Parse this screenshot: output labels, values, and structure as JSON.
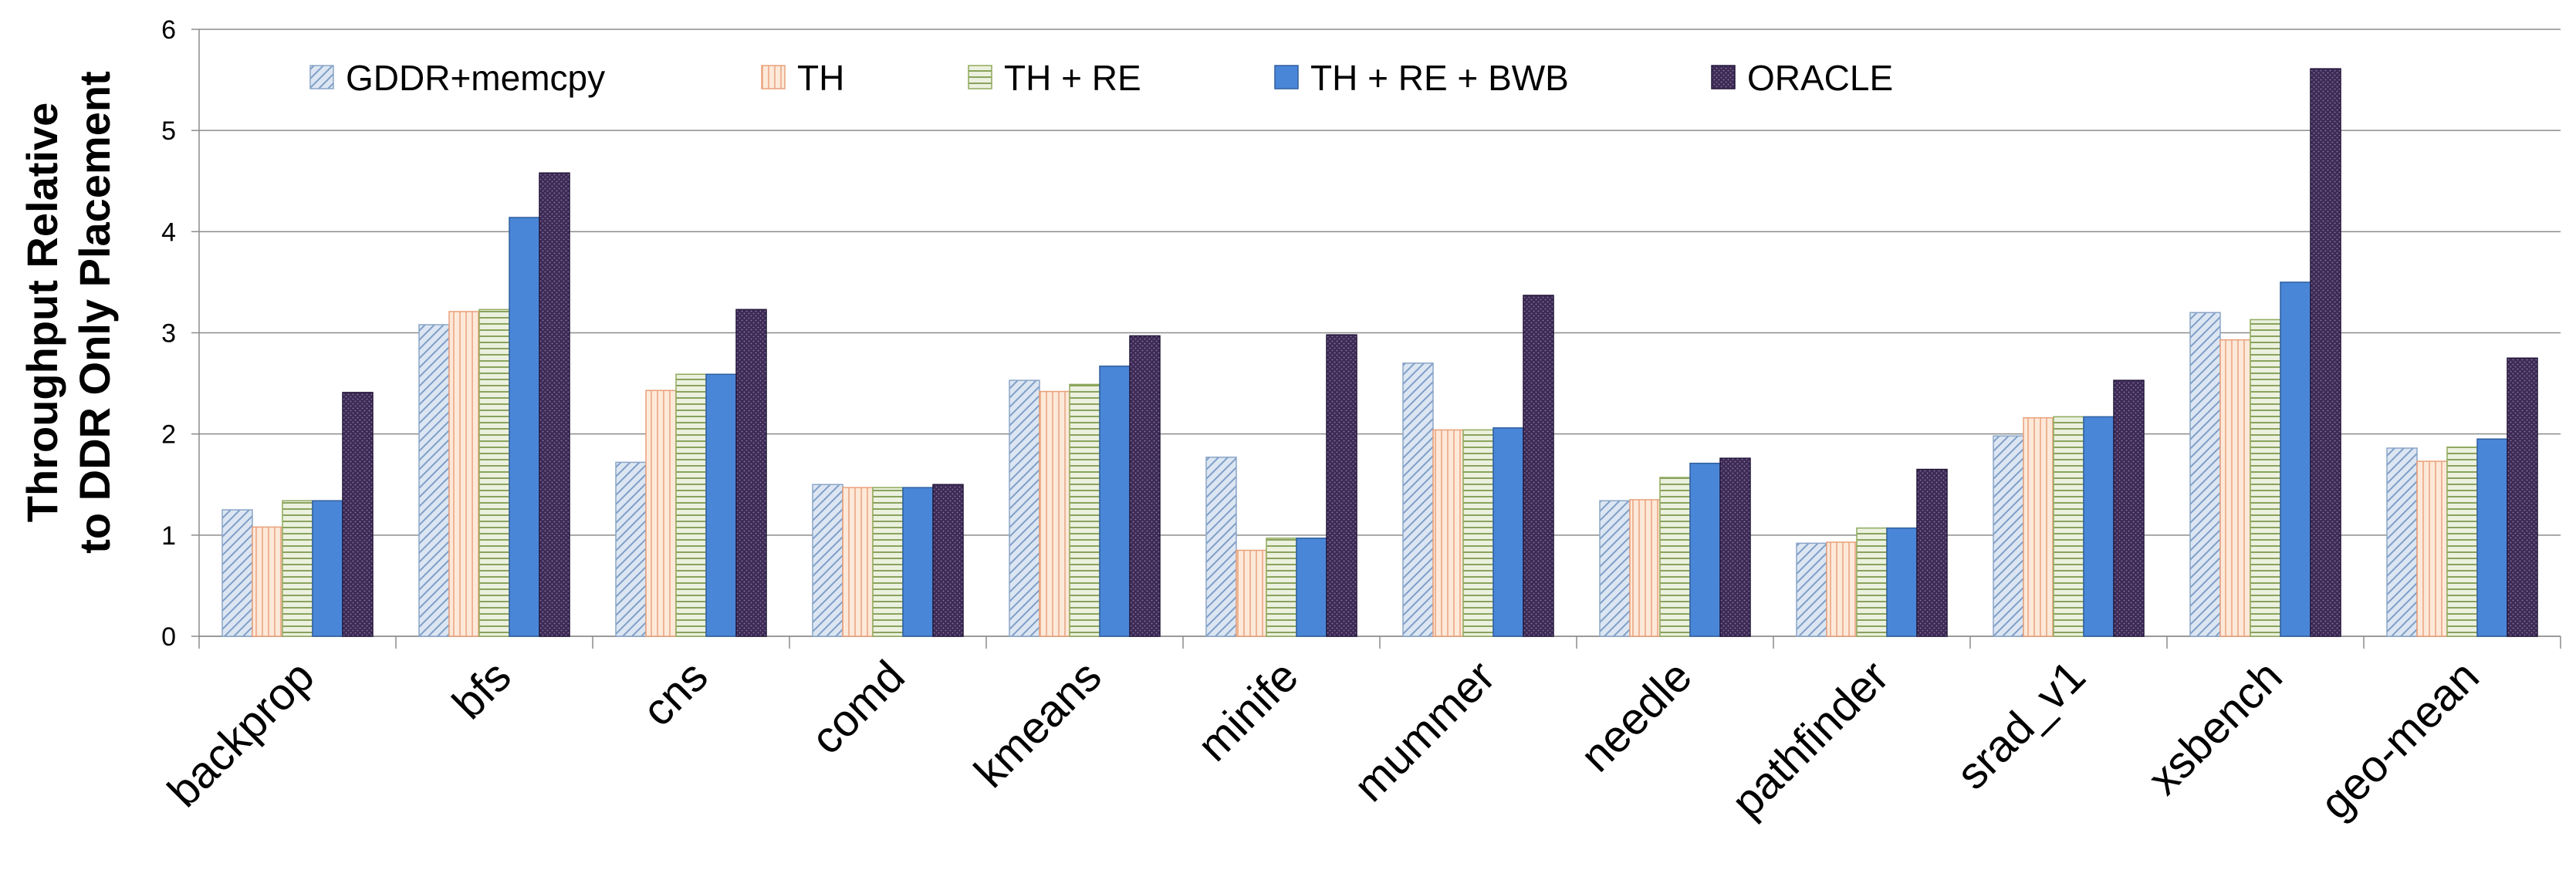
{
  "chart_data": {
    "type": "bar",
    "title": "",
    "xlabel": "",
    "ylabel_lines": [
      "Throughput Relative",
      "to DDR Only Placement"
    ],
    "ylim": [
      0,
      6
    ],
    "yticks": [
      "0",
      "1",
      "2",
      "3",
      "4",
      "5",
      "6"
    ],
    "grid": true,
    "legend_position": "top",
    "categories": [
      "backprop",
      "bfs",
      "cns",
      "comd",
      "kmeans",
      "minife",
      "mummer",
      "needle",
      "pathfinder",
      "srad_v1",
      "xsbench",
      "geo-mean"
    ],
    "series": [
      {
        "name": "GDDR+memcpy",
        "pattern": "diagonal-hatch",
        "color": "#dce6f2",
        "stroke": "#8aa5c8",
        "values": [
          1.25,
          3.08,
          1.72,
          1.5,
          2.53,
          1.77,
          2.7,
          1.34,
          0.92,
          1.98,
          3.2,
          1.86
        ]
      },
      {
        "name": "TH",
        "pattern": "vertical-lines",
        "color": "#fde9d9",
        "stroke": "#e9a07a",
        "values": [
          1.08,
          3.21,
          2.43,
          1.47,
          2.42,
          0.85,
          2.04,
          1.35,
          0.93,
          2.16,
          2.93,
          1.73
        ]
      },
      {
        "name": "TH + RE",
        "pattern": "horizontal-lines",
        "color": "#ebf1de",
        "stroke": "#8faa5c",
        "values": [
          1.34,
          3.23,
          2.59,
          1.47,
          2.49,
          0.97,
          2.04,
          1.57,
          1.07,
          2.17,
          3.13,
          1.87
        ]
      },
      {
        "name": "TH + RE + BWB",
        "pattern": "solid",
        "color": "#4a86d8",
        "stroke": "#2f5f9e",
        "values": [
          1.34,
          4.14,
          2.59,
          1.47,
          2.67,
          0.97,
          2.06,
          1.71,
          1.07,
          2.17,
          3.5,
          1.95
        ]
      },
      {
        "name": "ORACLE",
        "pattern": "dotted",
        "color": "#3d2b56",
        "stroke": "#24173a",
        "values": [
          2.41,
          4.58,
          3.23,
          1.5,
          2.97,
          2.98,
          3.37,
          1.76,
          1.65,
          2.53,
          5.61,
          2.75
        ]
      }
    ]
  }
}
